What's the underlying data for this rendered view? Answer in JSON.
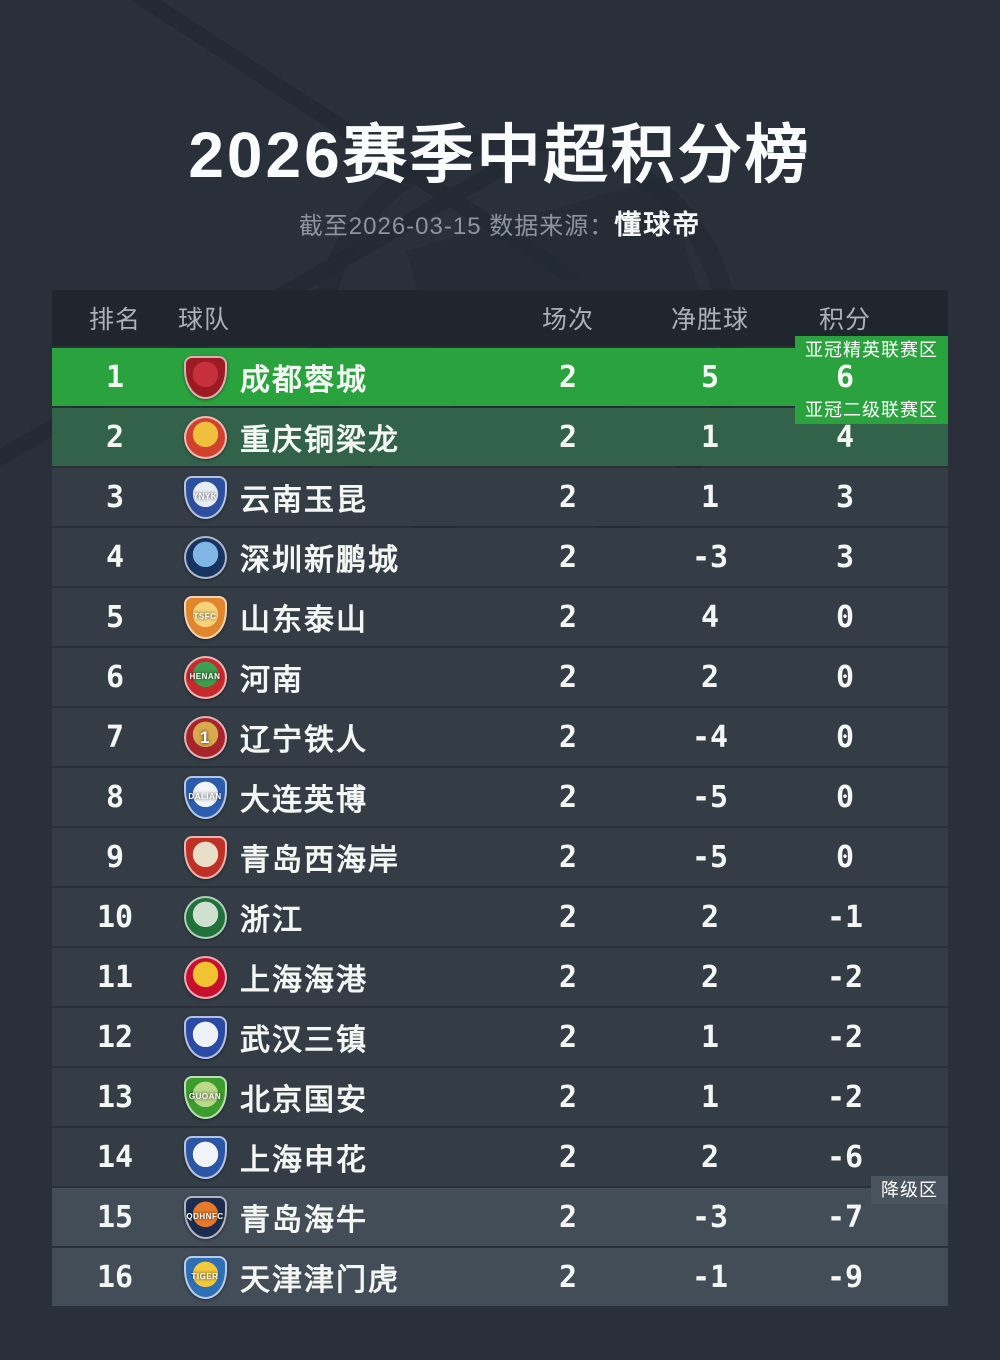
{
  "meta": {
    "title": "2026赛季中超积分榜",
    "subtitle_prefix": "截至2026-03-15 数据来源：",
    "source": "懂球帝"
  },
  "colors": {
    "page_bg": "#29303a",
    "wm": "#232a33",
    "header_bg": "#20262e",
    "header_text": "#a9b1b9",
    "sub_text": "#8c949c",
    "row_default": "#343d46",
    "row_acl_elite": "#2aa33f",
    "row_acl_two": "#33624a",
    "row_relegation": "#434d57",
    "badge_acl": "#2aa33f",
    "badge_relegation": "#4a545e"
  },
  "table": {
    "columns": {
      "rank": "排名",
      "team": "球队",
      "played": "场次",
      "goal_diff": "净胜球",
      "points": "积分"
    },
    "zones": {
      "acl_elite": {
        "label": "亚冠精英联赛区"
      },
      "acl_two": {
        "label": "亚冠二级联赛区"
      },
      "relegation": {
        "label": "降级区"
      }
    },
    "rows": [
      {
        "rank": "1",
        "team": "成都蓉城",
        "played": "2",
        "goal_diff": "5",
        "points": "6",
        "zone": "acl_elite",
        "logo": {
          "shape": "shield",
          "c1": "#9c1b23",
          "c2": "#c5303c",
          "monogram": ""
        }
      },
      {
        "rank": "2",
        "team": "重庆铜梁龙",
        "played": "2",
        "goal_diff": "1",
        "points": "4",
        "zone": "acl_two",
        "logo": {
          "shape": "circle",
          "c1": "#d2402e",
          "c2": "#f0bf3e",
          "monogram": ""
        }
      },
      {
        "rank": "3",
        "team": "云南玉昆",
        "played": "2",
        "goal_diff": "1",
        "points": "3",
        "zone": "",
        "logo": {
          "shape": "shield",
          "c1": "#2c4f9e",
          "c2": "#e8edf5",
          "monogram": "YNYK"
        }
      },
      {
        "rank": "4",
        "team": "深圳新鹏城",
        "played": "2",
        "goal_diff": "-3",
        "points": "3",
        "zone": "",
        "logo": {
          "shape": "circle",
          "c1": "#16345f",
          "c2": "#7fb6e3",
          "monogram": ""
        }
      },
      {
        "rank": "5",
        "team": "山东泰山",
        "played": "2",
        "goal_diff": "4",
        "points": "0",
        "zone": "",
        "logo": {
          "shape": "shield",
          "c1": "#e0862c",
          "c2": "#f6d27a",
          "monogram": "TSFC"
        }
      },
      {
        "rank": "6",
        "team": "河南",
        "played": "2",
        "goal_diff": "2",
        "points": "0",
        "zone": "",
        "logo": {
          "shape": "circle",
          "c1": "#c62a2d",
          "c2": "#3f9e4f",
          "monogram": "HENAN"
        }
      },
      {
        "rank": "7",
        "team": "辽宁铁人",
        "played": "2",
        "goal_diff": "-4",
        "points": "0",
        "zone": "",
        "logo": {
          "shape": "circle",
          "c1": "#a8242b",
          "c2": "#d8a94e",
          "monogram": "1"
        }
      },
      {
        "rank": "8",
        "team": "大连英博",
        "played": "2",
        "goal_diff": "-5",
        "points": "0",
        "zone": "",
        "logo": {
          "shape": "shield",
          "c1": "#2b5cad",
          "c2": "#f2f5f9",
          "monogram": "DALIAN"
        }
      },
      {
        "rank": "9",
        "team": "青岛西海岸",
        "played": "2",
        "goal_diff": "-5",
        "points": "0",
        "zone": "",
        "logo": {
          "shape": "shield",
          "c1": "#bf3127",
          "c2": "#e9dfc8",
          "monogram": ""
        }
      },
      {
        "rank": "10",
        "team": "浙江",
        "played": "2",
        "goal_diff": "2",
        "points": "-1",
        "zone": "",
        "logo": {
          "shape": "circle",
          "c1": "#20713a",
          "c2": "#cfe0cf",
          "monogram": ""
        }
      },
      {
        "rank": "11",
        "team": "上海海港",
        "played": "2",
        "goal_diff": "2",
        "points": "-2",
        "zone": "",
        "logo": {
          "shape": "circle",
          "c1": "#c8102e",
          "c2": "#f1c232",
          "monogram": ""
        }
      },
      {
        "rank": "12",
        "team": "武汉三镇",
        "played": "2",
        "goal_diff": "1",
        "points": "-2",
        "zone": "",
        "logo": {
          "shape": "shield",
          "c1": "#2b4aa5",
          "c2": "#eef1f7",
          "monogram": ""
        }
      },
      {
        "rank": "13",
        "team": "北京国安",
        "played": "2",
        "goal_diff": "1",
        "points": "-2",
        "zone": "",
        "logo": {
          "shape": "shield",
          "c1": "#3c9d2f",
          "c2": "#bcd98a",
          "monogram": "GUOAN"
        }
      },
      {
        "rank": "14",
        "team": "上海申花",
        "played": "2",
        "goal_diff": "2",
        "points": "-6",
        "zone": "",
        "logo": {
          "shape": "shield",
          "c1": "#2b55a5",
          "c2": "#f0f3f8",
          "monogram": ""
        }
      },
      {
        "rank": "15",
        "team": "青岛海牛",
        "played": "2",
        "goal_diff": "-3",
        "points": "-7",
        "zone": "relegation",
        "logo": {
          "shape": "shield",
          "c1": "#1d2c4e",
          "c2": "#e87b2b",
          "monogram": "QDHNFC"
        }
      },
      {
        "rank": "16",
        "team": "天津津门虎",
        "played": "2",
        "goal_diff": "-1",
        "points": "-9",
        "zone": "relegation",
        "logo": {
          "shape": "shield",
          "c1": "#2f6fb5",
          "c2": "#f3c93e",
          "monogram": "TIGER"
        }
      }
    ]
  },
  "chart_data": {
    "type": "table",
    "title": "2026赛季中超积分榜",
    "subtitle": "截至2026-03-15 数据来源：懂球帝",
    "columns": [
      "排名",
      "球队",
      "场次",
      "净胜球",
      "积分"
    ],
    "rows": [
      [
        1,
        "成都蓉城",
        2,
        5,
        6
      ],
      [
        2,
        "重庆铜梁龙",
        2,
        1,
        4
      ],
      [
        3,
        "云南玉昆",
        2,
        1,
        3
      ],
      [
        4,
        "深圳新鹏城",
        2,
        -3,
        3
      ],
      [
        5,
        "山东泰山",
        2,
        4,
        0
      ],
      [
        6,
        "河南",
        2,
        2,
        0
      ],
      [
        7,
        "辽宁铁人",
        2,
        -4,
        0
      ],
      [
        8,
        "大连英博",
        2,
        -5,
        0
      ],
      [
        9,
        "青岛西海岸",
        2,
        -5,
        0
      ],
      [
        10,
        "浙江",
        2,
        2,
        -1
      ],
      [
        11,
        "上海海港",
        2,
        2,
        -2
      ],
      [
        12,
        "武汉三镇",
        2,
        1,
        -2
      ],
      [
        13,
        "北京国安",
        2,
        1,
        -2
      ],
      [
        14,
        "上海申花",
        2,
        2,
        -6
      ],
      [
        15,
        "青岛海牛",
        2,
        -3,
        -7
      ],
      [
        16,
        "天津津门虎",
        2,
        -1,
        -9
      ]
    ],
    "annotations": [
      {
        "label": "亚冠精英联赛区",
        "applies_to_rank": 1
      },
      {
        "label": "亚冠二级联赛区",
        "applies_to_rank": 2
      },
      {
        "label": "降级区",
        "applies_to_ranks": [
          15,
          16
        ]
      }
    ]
  }
}
